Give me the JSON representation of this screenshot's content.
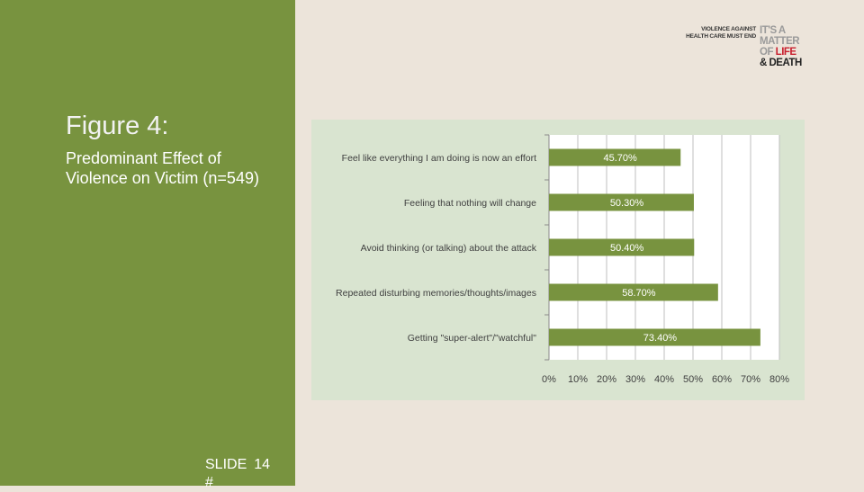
{
  "slide": {
    "title": "Figure 4:",
    "subtitle": "Predominant Effect of Violence on Victim (n=549)",
    "slide_label": "SLIDE",
    "slide_number": "14",
    "slide_hash": "#"
  },
  "logo": {
    "left_line1": "VIOLENCE AGAINST",
    "left_line2": "HEALTH CARE MUST END",
    "right_line1": "IT'S A",
    "right_line2": "MATTER",
    "right_line3a": "OF ",
    "right_line3b": "LIFE",
    "right_line4": "& DEATH"
  },
  "colors": {
    "panel": "#78933f",
    "bar": "#78933f",
    "chart_bg": "#d9e4d0",
    "page_bg": "#ece4da"
  },
  "chart_data": {
    "type": "bar",
    "orientation": "horizontal",
    "categories": [
      "Feel like everything I am doing is now an effort",
      "Feeling that nothing will change",
      "Avoid thinking (or talking) about the attack",
      "Repeated disturbing memories/thoughts/images",
      "Getting \"super-alert\"/\"watchful\""
    ],
    "values": [
      45.7,
      50.3,
      50.4,
      58.7,
      73.4
    ],
    "data_labels": [
      "45.70%",
      "50.30%",
      "50.40%",
      "58.70%",
      "73.40%"
    ],
    "x_ticks": [
      0,
      10,
      20,
      30,
      40,
      50,
      60,
      70,
      80
    ],
    "x_tick_labels": [
      "0%",
      "10%",
      "20%",
      "30%",
      "40%",
      "50%",
      "60%",
      "70%",
      "80%"
    ],
    "xlim": [
      0,
      80
    ],
    "grid": true,
    "legend": "none"
  }
}
